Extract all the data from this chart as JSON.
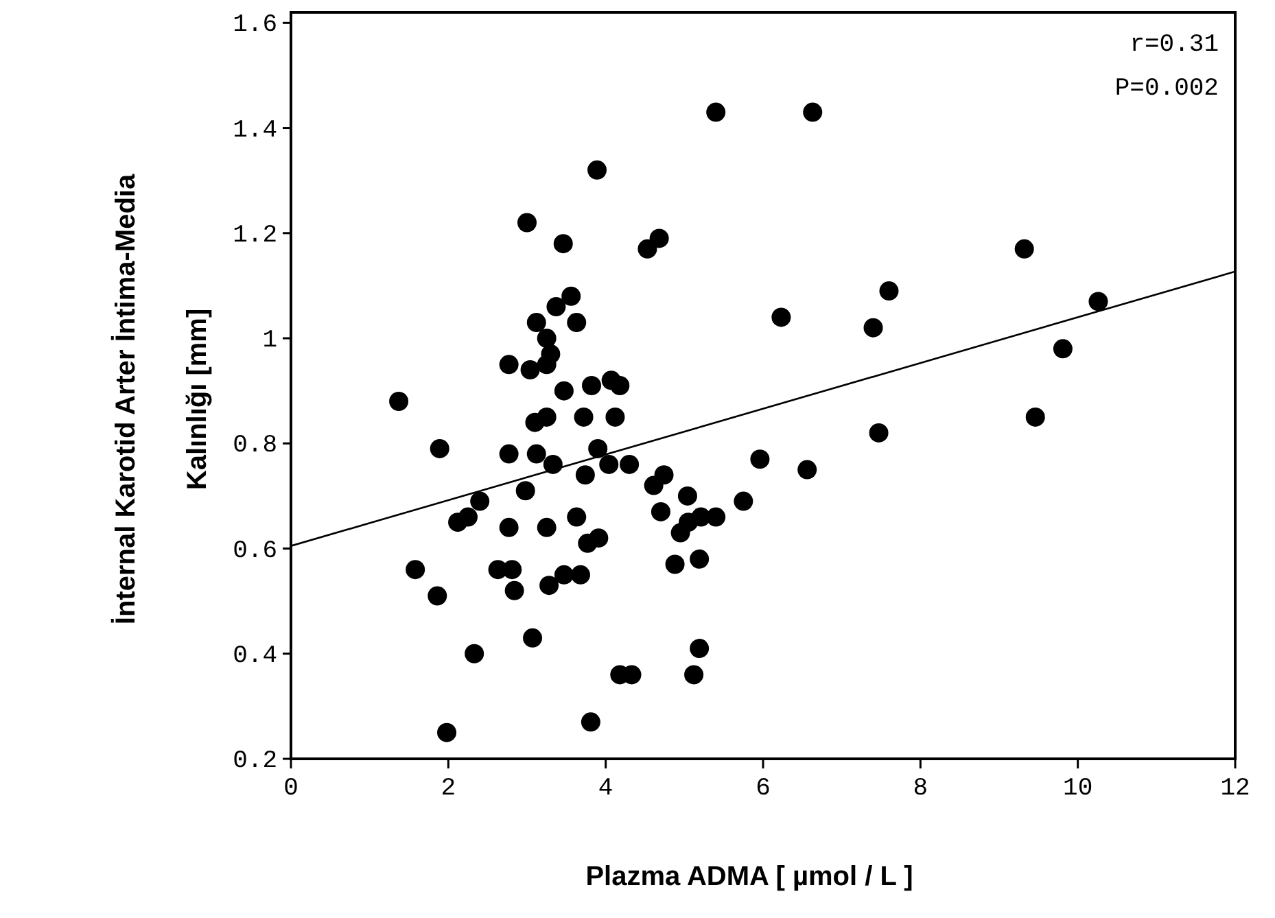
{
  "chart_data": {
    "type": "scatter",
    "xlabel": "Plazma ADMA [ µmol / L ]",
    "ylabel": "İnternal Karotid Arter İntima-Media\nKalınlığı [mm]",
    "annotations": [
      "r=0.31",
      "P=0.002"
    ],
    "xlim": [
      0,
      12
    ],
    "ylim": [
      0.2,
      1.62
    ],
    "xticks": [
      0,
      2,
      4,
      6,
      8,
      10,
      12
    ],
    "yticks": [
      0.2,
      0.4,
      0.6,
      0.8,
      1.0,
      1.2,
      1.4,
      1.6
    ],
    "grid": false,
    "series": [
      {
        "marker": "circle",
        "color": "#000000",
        "x": [
          1.37,
          1.89,
          1.58,
          1.86,
          1.98,
          2.33,
          2.4,
          2.25,
          2.12,
          2.77,
          3.12,
          3.33,
          2.98,
          2.77,
          3.25,
          2.63,
          2.81,
          2.84,
          3.07,
          3.1,
          3.25,
          3.72,
          4.12,
          3.47,
          3.82,
          4.18,
          3.9,
          4.04,
          4.3,
          3.74,
          3.63,
          3.77,
          3.91,
          3.28,
          3.47,
          3.68,
          3.81,
          4.18,
          4.33,
          4.61,
          4.74,
          4.7,
          5.04,
          4.95,
          5.05,
          5.21,
          5.4,
          4.88,
          5.19,
          5.19,
          5.12,
          5.75,
          5.96,
          5.4,
          3.89,
          3.0,
          3.46,
          4.53,
          4.68,
          3.56,
          3.37,
          3.12,
          3.63,
          3.25,
          3.3,
          2.77,
          3.04,
          3.25,
          4.07,
          6.23,
          6.63,
          9.32,
          7.6,
          7.4,
          10.26,
          9.81,
          9.46,
          7.47,
          6.56
        ],
        "values": [
          0.88,
          0.79,
          0.56,
          0.51,
          0.25,
          0.4,
          0.69,
          0.66,
          0.65,
          0.78,
          0.78,
          0.76,
          0.71,
          0.64,
          0.64,
          0.56,
          0.56,
          0.52,
          0.43,
          0.84,
          0.85,
          0.85,
          0.85,
          0.9,
          0.91,
          0.91,
          0.79,
          0.76,
          0.76,
          0.74,
          0.66,
          0.61,
          0.62,
          0.53,
          0.55,
          0.55,
          0.27,
          0.36,
          0.36,
          0.72,
          0.74,
          0.67,
          0.7,
          0.63,
          0.65,
          0.66,
          0.66,
          0.57,
          0.58,
          0.41,
          0.36,
          0.69,
          0.77,
          1.43,
          1.32,
          1.22,
          1.18,
          1.17,
          1.19,
          1.08,
          1.06,
          1.03,
          1.03,
          1.0,
          0.97,
          0.95,
          0.94,
          0.95,
          0.92,
          1.04,
          1.43,
          1.17,
          1.09,
          1.02,
          1.07,
          0.98,
          0.85,
          0.82,
          0.75
        ]
      },
      {
        "type": "line",
        "marker": "none",
        "color": "#000000",
        "x": [
          0,
          12
        ],
        "values": [
          0.605,
          1.127
        ]
      }
    ]
  }
}
